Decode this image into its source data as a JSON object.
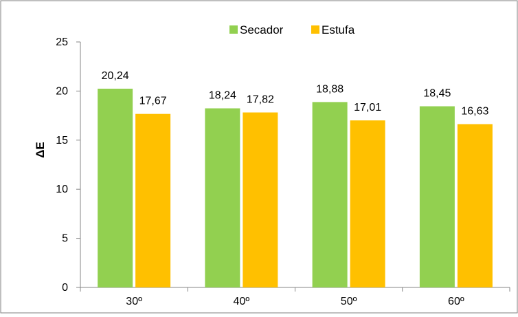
{
  "chart_data": {
    "type": "bar",
    "categories": [
      "30º",
      "40º",
      "50º",
      "60º"
    ],
    "series": [
      {
        "name": "Secador",
        "values": [
          20.24,
          18.24,
          18.88,
          18.45
        ],
        "labels": [
          "20,24",
          "18,24",
          "18,88",
          "18,45"
        ],
        "color": "#92d050"
      },
      {
        "name": "Estufa",
        "values": [
          17.67,
          17.82,
          17.01,
          16.63
        ],
        "labels": [
          "17,67",
          "17,82",
          "17,01",
          "16,63"
        ],
        "color": "#ffc000"
      }
    ],
    "title": "",
    "xlabel": "",
    "ylabel": "ΔE",
    "ylim": [
      0,
      25
    ],
    "yticks": [
      "0",
      "5",
      "10",
      "15",
      "20",
      "25"
    ],
    "grid": false,
    "legend": "top-center"
  }
}
